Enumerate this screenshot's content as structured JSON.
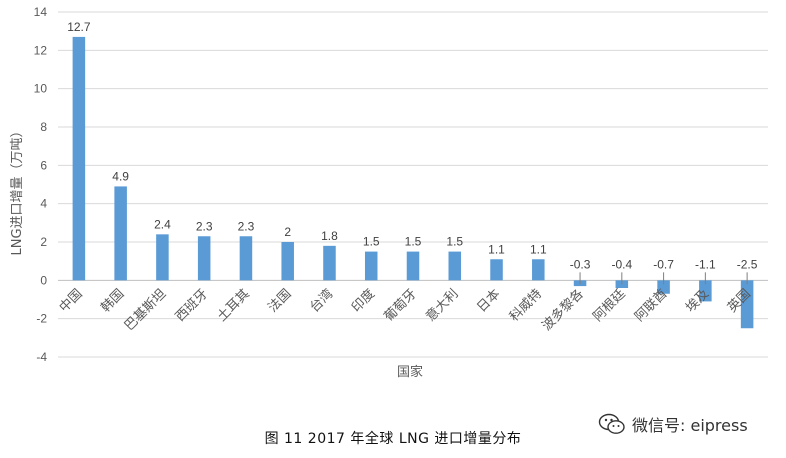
{
  "chart_data": {
    "type": "bar",
    "categories": [
      "中国",
      "韩国",
      "巴基斯坦",
      "西班牙",
      "土耳其",
      "法国",
      "台湾",
      "印度",
      "葡萄牙",
      "意大利",
      "日本",
      "科威特",
      "波多黎各",
      "阿根廷",
      "阿联酋",
      "埃及",
      "英国"
    ],
    "values": [
      12.7,
      4.9,
      2.4,
      2.3,
      2.3,
      2,
      1.8,
      1.5,
      1.5,
      1.5,
      1.1,
      1.1,
      -0.3,
      -0.4,
      -0.7,
      -1.1,
      -2.5
    ],
    "data_labels": [
      "12.7",
      "4.9",
      "2.4",
      "2.3",
      "2.3",
      "2",
      "1.8",
      "1.5",
      "1.5",
      "1.5",
      "1.1",
      "1.1",
      "-0.3",
      "-0.4",
      "-0.7",
      "-1.1",
      "-2.5"
    ],
    "xlabel": "国家",
    "ylabel": "LNG进口增量（万吨）",
    "ylim": [
      -4,
      14
    ],
    "yticks": [
      "-4",
      "-2",
      "0",
      "2",
      "4",
      "6",
      "8",
      "10",
      "12",
      "14"
    ],
    "bar_color": "#5b9bd5",
    "grid": true,
    "legend": "none"
  },
  "caption": "图 11   2017 年全球 LNG 进口增量分布",
  "watermark": {
    "text": "微信号: eipress",
    "icon": "wechat-icon"
  }
}
